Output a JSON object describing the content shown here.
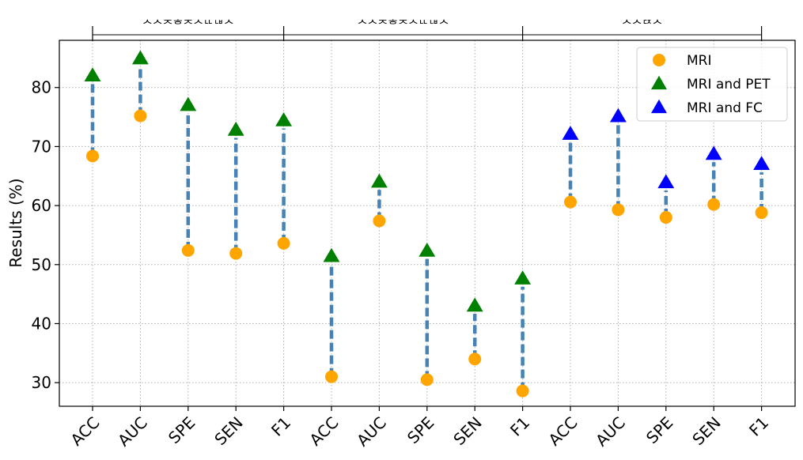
{
  "chart_data": {
    "type": "scatter",
    "ylabel": "Results (%)",
    "xlabel": "",
    "ylim": [
      26,
      88
    ],
    "yticks": [
      30,
      40,
      50,
      60,
      70,
      80
    ],
    "grid": true,
    "legend_position": "top-right",
    "group_labels": [
      "ᄉᄉᄌᄒᄌᄉᄔᄖᄉ",
      "ᄉᄉᄌᄒᄌᄉᄔᄖᄉ",
      "ᄉᄉᄃᄌᄉ"
    ],
    "categories": [
      "ACC",
      "AUC",
      "SPE",
      "SEN",
      "F1",
      "ACC",
      "AUC",
      "SPE",
      "SEN",
      "F1",
      "ACC",
      "AUC",
      "SPE",
      "SEN",
      "F1"
    ],
    "series": [
      {
        "name": "MRI",
        "marker": "circle",
        "color": "#ffa500",
        "values": [
          68.4,
          75.2,
          52.4,
          51.9,
          53.6,
          31.0,
          57.4,
          30.5,
          34.0,
          28.6,
          60.6,
          59.3,
          58.0,
          60.2,
          58.8
        ]
      },
      {
        "name": "MRI and PET",
        "marker": "triangle",
        "color": "#008000",
        "values": [
          82.0,
          84.9,
          77.0,
          72.8,
          74.4,
          51.4,
          64.0,
          52.3,
          43.0,
          47.6,
          null,
          null,
          null,
          null,
          null
        ]
      },
      {
        "name": "MRI and FC",
        "marker": "triangle",
        "color": "#0000ff",
        "values": [
          null,
          null,
          null,
          null,
          null,
          null,
          null,
          null,
          null,
          null,
          72.1,
          75.1,
          63.9,
          68.7,
          67.0
        ]
      }
    ],
    "connector_color": "#4682b4"
  }
}
